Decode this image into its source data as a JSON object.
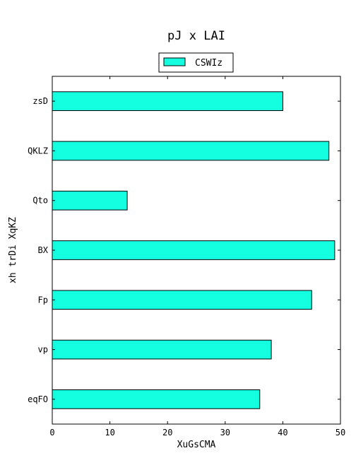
{
  "chart_data": {
    "type": "bar",
    "orientation": "horizontal",
    "title": "pJ x LAI",
    "xlabel": "XuGsCMA",
    "ylabel": "xh trDi XqKZ",
    "categories": [
      "zsD",
      "QKLZ",
      "Qto",
      "BX",
      "Fp",
      "vp",
      "eqFO"
    ],
    "series": [
      {
        "name": "CSWIz",
        "values": [
          40,
          48,
          13,
          49,
          45,
          38,
          36
        ]
      }
    ],
    "xlim": [
      0,
      50
    ],
    "xticks": [
      "0",
      "10",
      "20",
      "30",
      "40",
      "50"
    ],
    "grid": false,
    "legend_position": "top-center",
    "bar_color": "#14ffe0",
    "edge_color": "#000000"
  }
}
